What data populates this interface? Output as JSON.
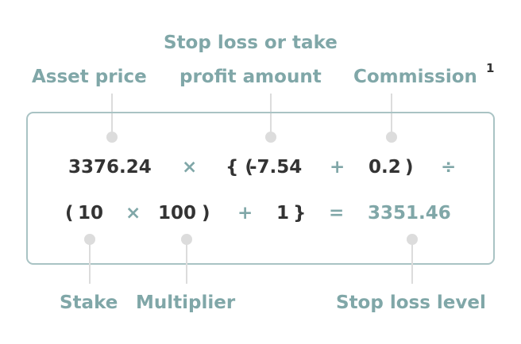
{
  "labels": {
    "asset_price": "Asset price",
    "stop_loss_line1": "Stop loss or take",
    "stop_loss_line2": "profit amount",
    "commission": "Commission",
    "commission_superscript": "1",
    "stake": "Stake",
    "multiplier": "Multiplier",
    "stop_loss_level": "Stop loss level"
  },
  "formula": {
    "row1": {
      "asset_price": "3376.24",
      "op_times": "×",
      "open_braces": "{ (",
      "stop_loss_amount": "-7.54",
      "op_plus": "+",
      "commission": "0.2",
      "close_paren": ")",
      "op_divide": "÷"
    },
    "row2": {
      "open_paren": "(",
      "stake": "10",
      "op_times": "×",
      "multiplier": "100",
      "close_paren": ")",
      "op_plus": "+",
      "one": "1",
      "close_brace": "}",
      "op_equals": "=",
      "result": "3351.46"
    }
  },
  "colors": {
    "label": "#80a7a8",
    "value": "#333333",
    "connector": "#dcdcdc",
    "border": "#a9c3c4"
  }
}
